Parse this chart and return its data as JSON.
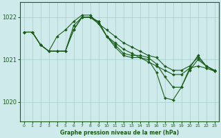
{
  "title": "Graphe pression niveau de la mer (hPa)",
  "background_color": "#ceeaea",
  "grid_color": "#aad4d4",
  "line_color": "#1a5c1a",
  "marker_color": "#1a5c1a",
  "xlim": [
    -0.5,
    23.5
  ],
  "ylim": [
    1019.55,
    1022.35
  ],
  "yticks": [
    1020,
    1021,
    1022
  ],
  "xtick_labels": [
    "0",
    "1",
    "2",
    "3",
    "4",
    "5",
    "6",
    "7",
    "8",
    "9",
    "10",
    "11",
    "12",
    "13",
    "14",
    "15",
    "16",
    "17",
    "18",
    "19",
    "20",
    "21",
    "22",
    "23"
  ],
  "xticks": [
    0,
    1,
    2,
    3,
    4,
    5,
    6,
    7,
    8,
    9,
    10,
    11,
    12,
    13,
    14,
    15,
    16,
    17,
    18,
    19,
    20,
    21,
    22,
    23
  ],
  "series": [
    [
      1021.65,
      1021.65,
      1021.35,
      1021.2,
      1021.55,
      1021.7,
      1021.9,
      1022.05,
      1022.05,
      1021.85,
      1021.7,
      1021.55,
      1021.4,
      1021.3,
      1021.2,
      1021.1,
      1021.05,
      1020.85,
      1020.75,
      1020.75,
      1020.85,
      1021.05,
      1020.85,
      1020.75
    ],
    [
      1021.65,
      1021.65,
      1021.35,
      1021.2,
      1021.2,
      1021.2,
      1021.8,
      1022.0,
      1022.0,
      1021.9,
      1021.55,
      1021.35,
      1021.15,
      1021.1,
      1021.1,
      1021.05,
      1020.9,
      1020.6,
      1020.35,
      1020.35,
      1020.8,
      1021.1,
      1020.85,
      1020.75
    ],
    [
      1021.65,
      1021.65,
      1021.35,
      1021.2,
      1021.2,
      1021.2,
      1021.7,
      1022.0,
      1022.0,
      1021.85,
      1021.55,
      1021.4,
      1021.25,
      1021.15,
      1021.05,
      1020.95,
      1020.85,
      1020.75,
      1020.65,
      1020.65,
      1020.8,
      1020.85,
      1020.8,
      1020.73
    ],
    [
      1021.65,
      1021.65,
      1021.35,
      1021.2,
      1021.2,
      1021.2,
      1021.7,
      1022.0,
      1022.0,
      1021.9,
      1021.55,
      1021.3,
      1021.1,
      1021.05,
      1021.05,
      1021.0,
      1020.7,
      1020.1,
      1020.05,
      1020.35,
      1020.75,
      1021.0,
      1020.85,
      1020.73
    ]
  ]
}
